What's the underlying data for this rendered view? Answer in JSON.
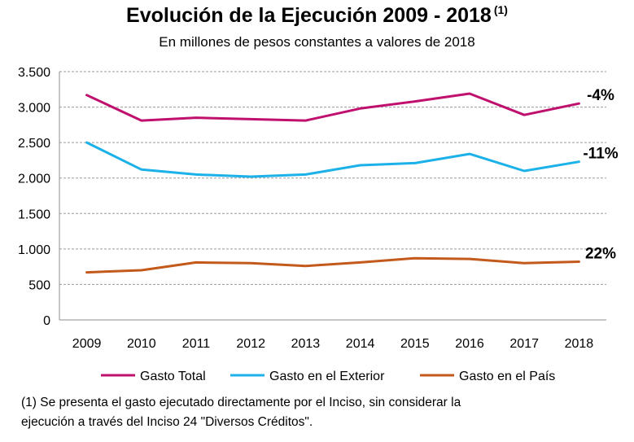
{
  "title": "Evolución de la Ejecución 2009 - 2018",
  "title_note": "(1)",
  "subtitle": "En millones de pesos constantes a valores de 2018",
  "footnote_line1": "(1) Se presenta el gasto ejecutado directamente por el Inciso,  sin considerar la",
  "footnote_line2": "ejecución a  través del Inciso 24 \"Diversos Créditos\".",
  "chart_data": {
    "type": "line",
    "title": "Evolución de la Ejecución 2009 - 2018",
    "subtitle": "En millones de pesos constantes a valores de 2018",
    "categories": [
      "2009",
      "2010",
      "2011",
      "2012",
      "2013",
      "2014",
      "2015",
      "2016",
      "2017",
      "2018"
    ],
    "ylim": [
      0,
      3500
    ],
    "yticks": [
      0,
      500,
      1000,
      1500,
      2000,
      2500,
      3000,
      3500
    ],
    "ytick_labels": [
      "0",
      "500",
      "1.000",
      "1.500",
      "2.000",
      "2.500",
      "3.000",
      "3.500"
    ],
    "grid": true,
    "legend_position": "bottom",
    "series": [
      {
        "name": "Gasto Total",
        "color": "#c0106e",
        "label": "-4%",
        "values": [
          3170,
          2810,
          2850,
          2830,
          2810,
          2980,
          3080,
          3190,
          2890,
          3050
        ]
      },
      {
        "name": "Gasto en el Exterior",
        "color": "#1cb1e8",
        "label": "-11%",
        "values": [
          2500,
          2120,
          2050,
          2020,
          2050,
          2180,
          2210,
          2340,
          2100,
          2230
        ]
      },
      {
        "name": "Gasto en el País",
        "color": "#c4591c",
        "label": "22%",
        "values": [
          670,
          700,
          810,
          800,
          760,
          810,
          870,
          860,
          800,
          820
        ]
      }
    ]
  }
}
